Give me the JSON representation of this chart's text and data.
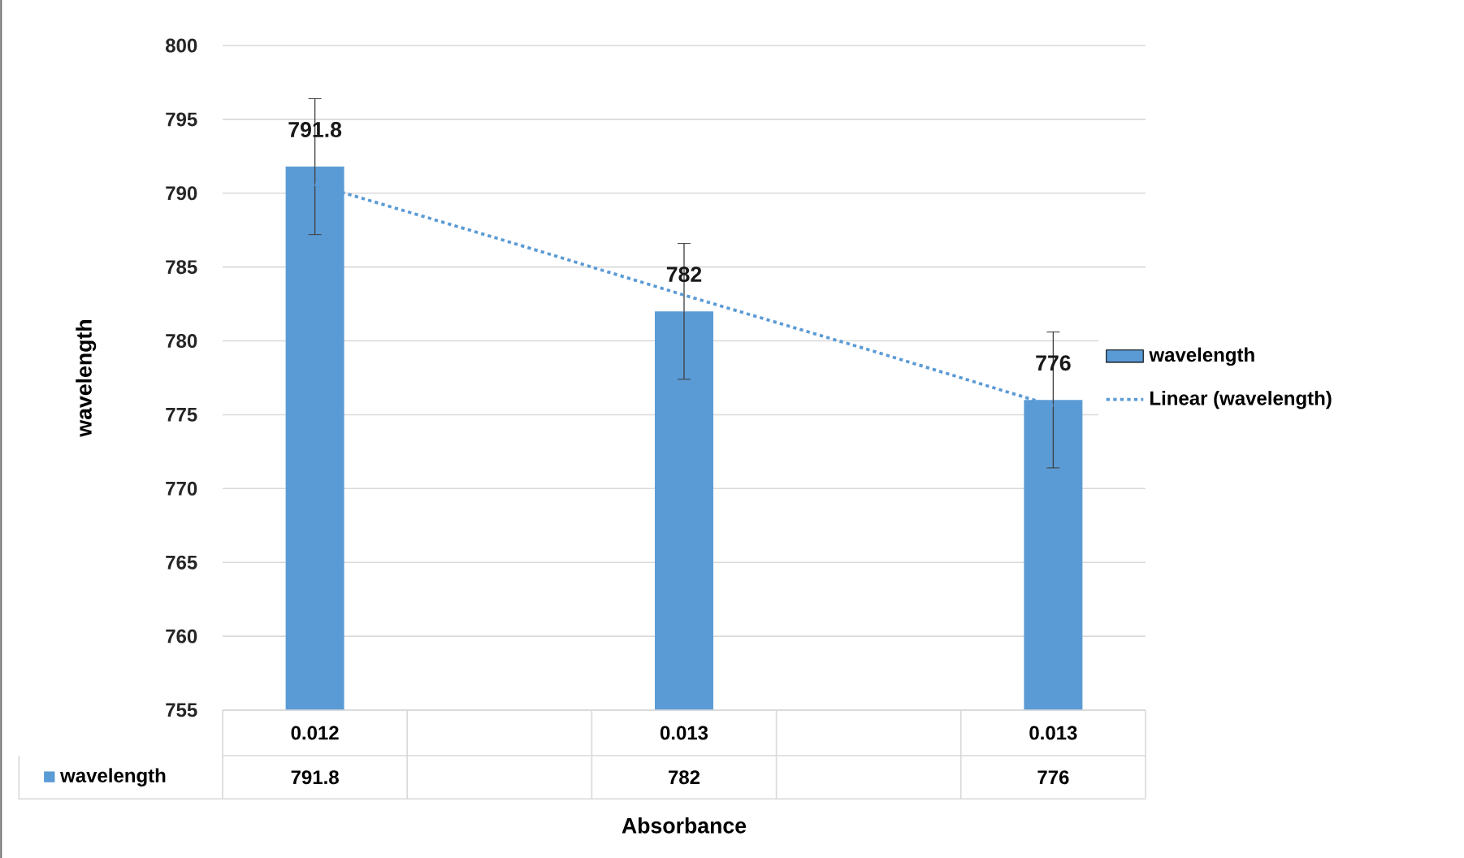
{
  "chart_data": {
    "type": "bar",
    "xlabel": "Absorbance",
    "ylabel": "wavelength",
    "categories": [
      "0.012",
      null,
      "0.013",
      null,
      "0.013"
    ],
    "series": [
      {
        "name": "wavelength",
        "color": "#5b9bd5",
        "values": [
          791.8,
          null,
          782,
          null,
          776
        ],
        "errors": [
          4.6,
          null,
          4.6,
          null,
          4.6
        ],
        "value_labels": [
          "791.8",
          null,
          "782",
          null,
          "776"
        ]
      },
      {
        "name": "Linear (wavelength)",
        "type": "line",
        "color": "#5b9bd5",
        "line_style": "dotted",
        "marker": "none",
        "values": [
          790.6,
          786.9,
          783.1,
          779.4,
          775.6
        ]
      }
    ],
    "ylim": [
      755,
      800
    ],
    "yticks": [
      755,
      760,
      765,
      770,
      775,
      780,
      785,
      790,
      795,
      800
    ],
    "grid": "y",
    "legend": "right"
  }
}
